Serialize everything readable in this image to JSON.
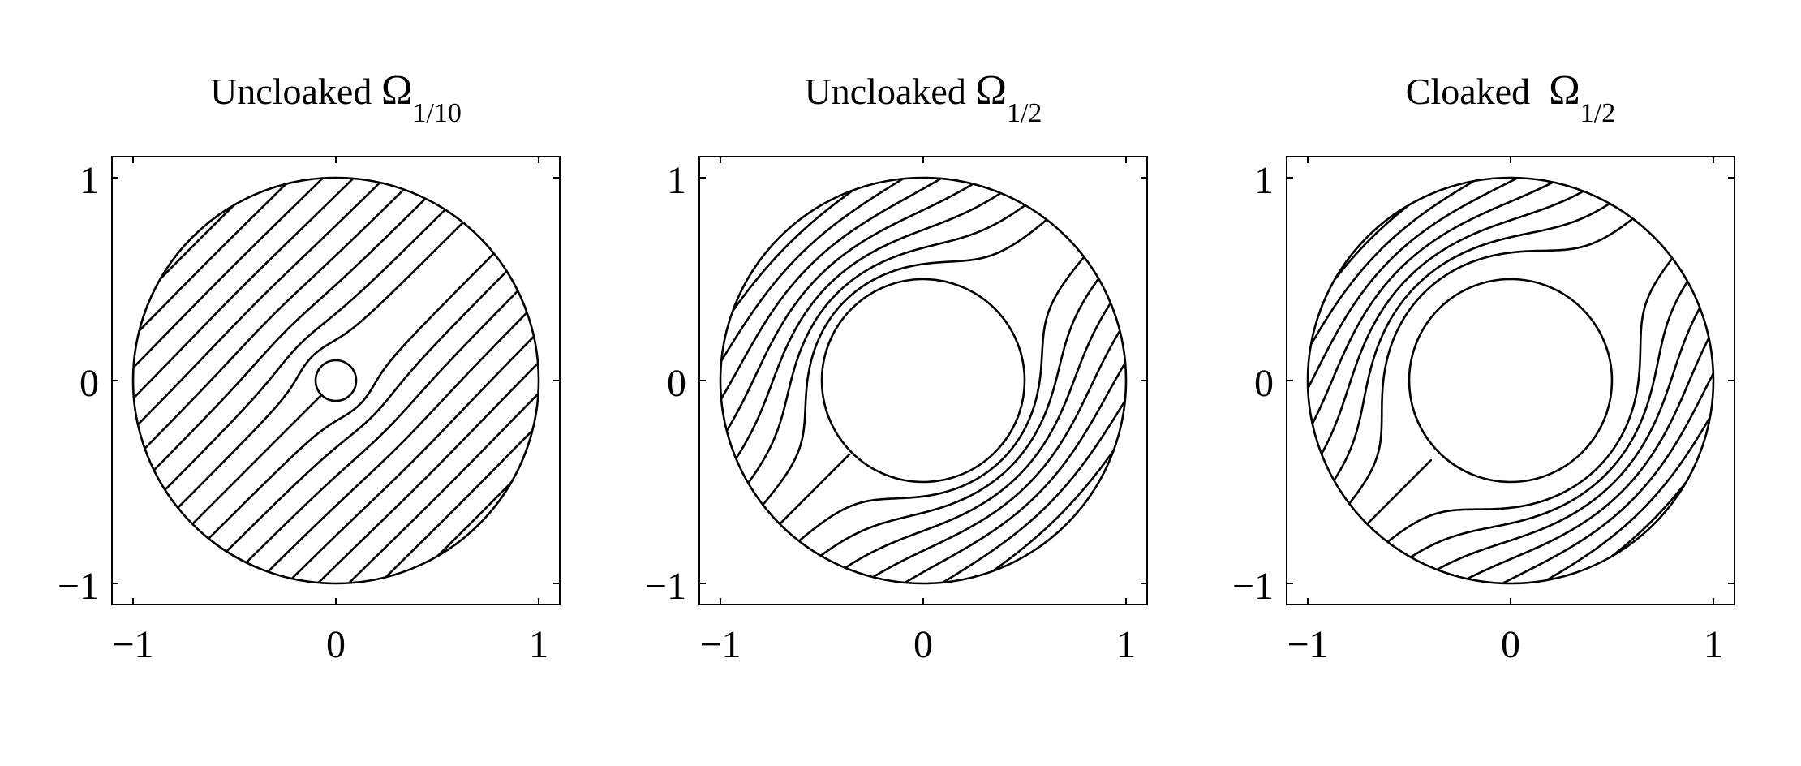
{
  "chart_data": [
    {
      "type": "line",
      "title": {
        "prefix": "Uncloaked ",
        "symbol": "Ω",
        "subscript": "1/10"
      },
      "inner_radius": 0.1,
      "outer_radius": 1,
      "cloaked": false,
      "n_streamlines": 19,
      "streamline_direction": "diagonal, lower-left to upper-right",
      "xlim": [
        -1.1,
        1.1
      ],
      "ylim": [
        -1.1,
        1.1
      ],
      "xticks": [
        -1,
        0,
        1
      ],
      "yticks": [
        -1,
        0,
        1
      ],
      "xtick_labels": [
        "−1",
        "0",
        "1"
      ],
      "ytick_labels": [
        "−1",
        "0",
        "1"
      ]
    },
    {
      "type": "line",
      "title": {
        "prefix": "Uncloaked ",
        "symbol": "Ω",
        "subscript": "1/2"
      },
      "inner_radius": 0.5,
      "outer_radius": 1,
      "cloaked": false,
      "n_streamlines": 19,
      "streamline_direction": "diagonal, lower-left to upper-right",
      "xlim": [
        -1.1,
        1.1
      ],
      "ylim": [
        -1.1,
        1.1
      ],
      "xticks": [
        -1,
        0,
        1
      ],
      "yticks": [
        -1,
        0,
        1
      ],
      "xtick_labels": [
        "−1",
        "0",
        "1"
      ],
      "ytick_labels": [
        "−1",
        "0",
        "1"
      ]
    },
    {
      "type": "line",
      "title": {
        "prefix": "Cloaked  ",
        "symbol": "Ω",
        "subscript": "1/2"
      },
      "inner_radius": 0.5,
      "outer_radius": 1,
      "cloaked": true,
      "n_streamlines": 19,
      "streamline_direction": "diagonal, lower-left to upper-right",
      "xlim": [
        -1.1,
        1.1
      ],
      "ylim": [
        -1.1,
        1.1
      ],
      "xticks": [
        -1,
        0,
        1
      ],
      "yticks": [
        -1,
        0,
        1
      ],
      "xtick_labels": [
        "−1",
        "0",
        "1"
      ],
      "ytick_labels": [
        "−1",
        "0",
        "1"
      ]
    }
  ]
}
